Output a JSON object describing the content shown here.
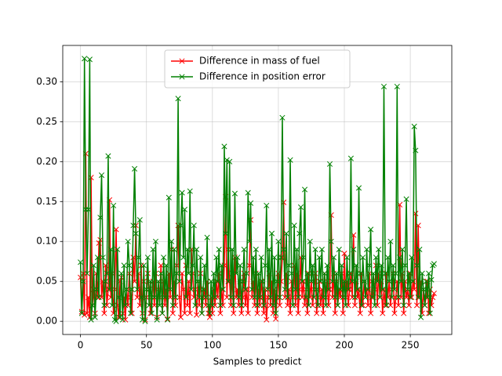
{
  "chart_data": {
    "type": "line",
    "xlabel": "Samples to predict",
    "xlim": [
      -13.45,
      281.45
    ],
    "xticks": [
      0,
      50,
      100,
      150,
      200,
      250
    ],
    "ylim": [
      -0.0165,
      0.3455
    ],
    "yticks": [
      {
        "value": 0,
        "label": "0.00"
      },
      {
        "value": 0.05,
        "label": "0.05"
      },
      {
        "value": 0.1,
        "label": "0.10"
      },
      {
        "value": 0.15,
        "label": "0.15"
      },
      {
        "value": 0.2,
        "label": "0.20"
      },
      {
        "value": 0.25,
        "label": "0.25"
      },
      {
        "value": 0.3,
        "label": "0.30"
      }
    ],
    "grid": true,
    "legend": "upper center",
    "series": [
      {
        "name": "Difference in mass of fuel",
        "color": "#ff0000",
        "values": [
          0.055,
          0.012,
          0.06,
          0.008,
          0.21,
          0.01,
          0.03,
          0.005,
          0.18,
          0.02,
          0.04,
          0.01,
          0.06,
          0.03,
          0.098,
          0.102,
          0.03,
          0.05,
          0.01,
          0.07,
          0.02,
          0.04,
          0.152,
          0.03,
          0.06,
          0.01,
          0.04,
          0.115,
          0.02,
          0.005,
          0.05,
          0.055,
          0.01,
          0.03,
          0.002,
          0.04,
          0.02,
          0.06,
          0.03,
          0.01,
          0.08,
          0.05,
          0.12,
          0.03,
          0.06,
          0.02,
          0.07,
          0.01,
          0.05,
          0.002,
          0.03,
          0.06,
          0.04,
          0.01,
          0.03,
          0.05,
          0.02,
          0.06,
          0.005,
          0.04,
          0.03,
          0.07,
          0.01,
          0.05,
          0.02,
          0.04,
          0.003,
          0.06,
          0.03,
          0.09,
          0.01,
          0.05,
          0.02,
          0.07,
          0.12,
          0.03,
          0.005,
          0.06,
          0.04,
          0.01,
          0.07,
          0.02,
          0.05,
          0.01,
          0.09,
          0.06,
          0.03,
          0.04,
          0.008,
          0.05,
          0.02,
          0.06,
          0.01,
          0.03,
          0.04,
          0.02,
          0.05,
          0.01,
          0.005,
          0.03,
          0.01,
          0.04,
          0.02,
          0.05,
          0.03,
          0.06,
          0.01,
          0.04,
          0.02,
          0.07,
          0.156,
          0.03,
          0.09,
          0.05,
          0.02,
          0.06,
          0.01,
          0.08,
          0.03,
          0.04,
          0.02,
          0.05,
          0.01,
          0.03,
          0.06,
          0.02,
          0.04,
          0.01,
          0.07,
          0.127,
          0.03,
          0.05,
          0.02,
          0.06,
          0.01,
          0.04,
          0.02,
          0.05,
          0.03,
          0.01,
          0.04,
          0.002,
          0.03,
          0.06,
          0.02,
          0.05,
          0.01,
          0.04,
          0.003,
          0.03,
          0.06,
          0.02,
          0.05,
          0.08,
          0.149,
          0.03,
          0.06,
          0.02,
          0.04,
          0.01,
          0.05,
          0.03,
          0.07,
          0.02,
          0.06,
          0.01,
          0.04,
          0.08,
          0.03,
          0.05,
          0.02,
          0.04,
          0.01,
          0.06,
          0.03,
          0.05,
          0.02,
          0.04,
          0.06,
          0.01,
          0.03,
          0.05,
          0.02,
          0.04,
          0.01,
          0.06,
          0.03,
          0.05,
          0.02,
          0.04,
          0.133,
          0.03,
          0.06,
          0.01,
          0.05,
          0.02,
          0.04,
          0.03,
          0.06,
          0.01,
          0.085,
          0.03,
          0.05,
          0.02,
          0.04,
          0.06,
          0.03,
          0.108,
          0.02,
          0.05,
          0.03,
          0.04,
          0.01,
          0.06,
          0.02,
          0.05,
          0.03,
          0.04,
          0.02,
          0.06,
          0.01,
          0.05,
          0.03,
          0.04,
          0.07,
          0.02,
          0.06,
          0.03,
          0.05,
          0.01,
          0.04,
          0.02,
          0.06,
          0.03,
          0.05,
          0.02,
          0.04,
          0.06,
          0.01,
          0.03,
          0.05,
          0.02,
          0.146,
          0.03,
          0.06,
          0.01,
          0.05,
          0.03,
          0.04,
          0.02,
          0.06,
          0.03,
          0.05,
          0.04,
          0.135,
          0.02,
          0.12,
          0.03,
          0.05,
          0.01,
          0.04,
          0.02,
          0.03,
          0.05,
          0.01,
          0.04,
          0.02,
          0.03,
          0.035
        ]
      },
      {
        "name": "Difference in position error",
        "color": "#008000",
        "values": [
          0.074,
          0.01,
          0.05,
          0.329,
          0.14,
          0.06,
          0.14,
          0.328,
          0.002,
          0.02,
          0.07,
          0.005,
          0.04,
          0.08,
          0.03,
          0.13,
          0.183,
          0.08,
          0.02,
          0.05,
          0.06,
          0.207,
          0.04,
          0.09,
          0.02,
          0.145,
          0.002,
          0.0,
          0.09,
          0.03,
          0.005,
          0.06,
          0.002,
          0.07,
          0.02,
          0.04,
          0.1,
          0.07,
          0.01,
          0.04,
          0.12,
          0.191,
          0.11,
          0.04,
          0.08,
          0.127,
          0.03,
          0.002,
          0.07,
          0.0,
          0.04,
          0.08,
          0.02,
          0.05,
          0.01,
          0.09,
          0.03,
          0.1,
          0.002,
          0.05,
          0.02,
          0.06,
          0.01,
          0.08,
          0.03,
          0.07,
          0.002,
          0.155,
          0.04,
          0.1,
          0.02,
          0.09,
          0.03,
          0.06,
          0.279,
          0.05,
          0.12,
          0.161,
          0.08,
          0.14,
          0.03,
          0.09,
          0.06,
          0.163,
          0.04,
          0.07,
          0.12,
          0.02,
          0.09,
          0.05,
          0.03,
          0.08,
          0.01,
          0.04,
          0.07,
          0.03,
          0.105,
          0.02,
          0.01,
          0.05,
          0.02,
          0.06,
          0.03,
          0.08,
          0.05,
          0.09,
          0.02,
          0.07,
          0.04,
          0.219,
          0.11,
          0.202,
          0.05,
          0.2,
          0.03,
          0.09,
          0.02,
          0.16,
          0.06,
          0.08,
          0.03,
          0.07,
          0.02,
          0.05,
          0.09,
          0.04,
          0.06,
          0.161,
          0.1,
          0.148,
          0.04,
          0.08,
          0.03,
          0.09,
          0.02,
          0.06,
          0.03,
          0.08,
          0.05,
          0.02,
          0.07,
          0.145,
          0.04,
          0.09,
          0.03,
          0.11,
          0.02,
          0.08,
          0.01,
          0.05,
          0.1,
          0.03,
          0.08,
          0.255,
          0.09,
          0.04,
          0.11,
          0.03,
          0.07,
          0.202,
          0.06,
          0.02,
          0.12,
          0.04,
          0.09,
          0.03,
          0.11,
          0.143,
          0.05,
          0.08,
          0.165,
          0.03,
          0.06,
          0.02,
          0.1,
          0.05,
          0.07,
          0.03,
          0.09,
          0.04,
          0.02,
          0.08,
          0.05,
          0.09,
          0.03,
          0.06,
          0.02,
          0.07,
          0.04,
          0.197,
          0.1,
          0.05,
          0.08,
          0.03,
          0.06,
          0.02,
          0.09,
          0.04,
          0.07,
          0.03,
          0.05,
          0.02,
          0.08,
          0.04,
          0.06,
          0.204,
          0.05,
          0.09,
          0.03,
          0.07,
          0.04,
          0.167,
          0.06,
          0.02,
          0.08,
          0.05,
          0.03,
          0.09,
          0.04,
          0.07,
          0.115,
          0.03,
          0.06,
          0.02,
          0.08,
          0.05,
          0.09,
          0.03,
          0.07,
          0.04,
          0.294,
          0.06,
          0.02,
          0.08,
          0.05,
          0.1,
          0.03,
          0.07,
          0.04,
          0.06,
          0.294,
          0.03,
          0.08,
          0.05,
          0.09,
          0.02,
          0.07,
          0.153,
          0.04,
          0.06,
          0.03,
          0.08,
          0.05,
          0.244,
          0.214,
          0.07,
          0.03,
          0.09,
          0.005,
          0.06,
          0.04,
          0.02,
          0.05,
          0.03,
          0.06,
          0.01,
          0.052,
          0.07,
          0.072
        ]
      }
    ]
  }
}
